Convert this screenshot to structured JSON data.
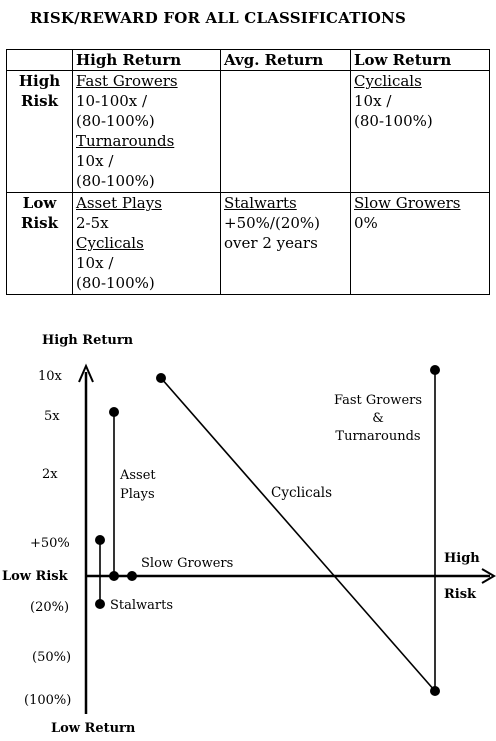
{
  "title": "RISK/REWARD FOR ALL CLASSIFICATIONS",
  "table": {
    "headers": [
      "",
      "High Return",
      "Avg. Return",
      "Low Return"
    ],
    "rows": [
      {
        "risk": [
          "High",
          "Risk"
        ],
        "high": [
          {
            "name": "Fast Growers",
            "lines": [
              "10-100x /",
              "(80-100%)"
            ]
          },
          {
            "name": "Turnarounds",
            "lines": [
              "10x /",
              "(80-100%)"
            ]
          }
        ],
        "avg": [],
        "low": [
          {
            "name": "Cyclicals",
            "lines": [
              "10x /",
              "(80-100%)"
            ]
          }
        ]
      },
      {
        "risk": [
          "Low",
          "Risk"
        ],
        "high": [
          {
            "name": "Asset Plays",
            "lines": [
              "2-5x"
            ]
          },
          {
            "name": "Cyclicals",
            "lines": [
              "10x /",
              "(80-100%)"
            ]
          }
        ],
        "avg": [
          {
            "name": "Stalwarts",
            "lines": [
              "+50%/(20%)",
              "over 2 years"
            ]
          }
        ],
        "low": [
          {
            "name": "Slow Growers",
            "lines": [
              "0%"
            ]
          }
        ]
      }
    ]
  },
  "diagram": {
    "y_axis_top_label": "High Return",
    "y_axis_bottom_label": "Low Return",
    "x_axis_left_label": "Low Risk",
    "x_axis_right_label_1": "High",
    "x_axis_right_label_2": "Risk",
    "y_ticks": [
      "10x",
      "5x",
      "2x",
      "+50%",
      "(20%)",
      "(50%)",
      "(100%)"
    ],
    "annotations": {
      "asset_plays": [
        "Asset",
        "Plays"
      ],
      "slow_growers": "Slow Growers",
      "stalwarts": "Stalwarts",
      "cyclicals": "Cyclicals",
      "fast_growers": [
        "Fast Growers",
        "&",
        "Turnarounds"
      ]
    }
  }
}
